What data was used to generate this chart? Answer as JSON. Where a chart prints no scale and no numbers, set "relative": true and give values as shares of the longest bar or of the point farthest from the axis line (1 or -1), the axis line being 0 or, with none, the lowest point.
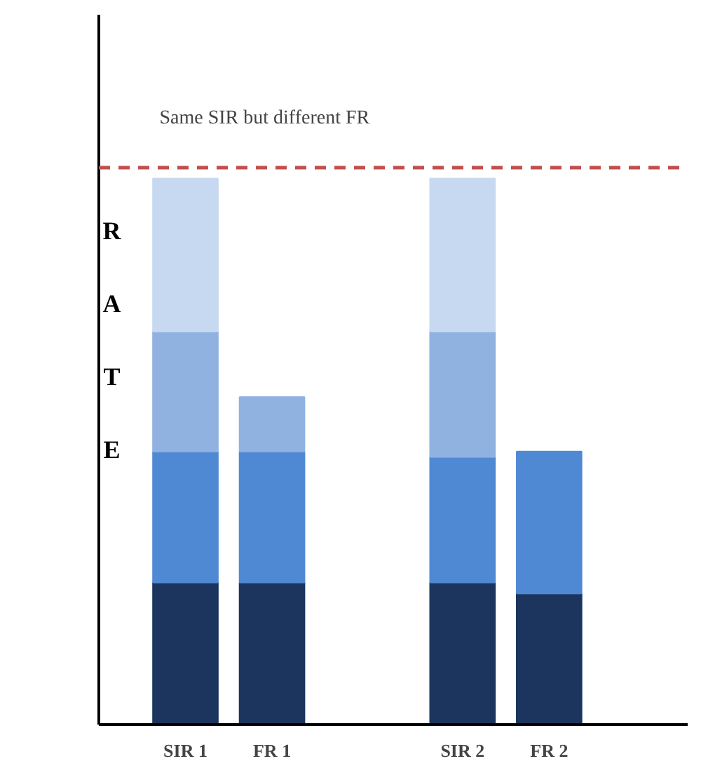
{
  "chart_data": {
    "type": "bar",
    "stacked": true,
    "relative": true,
    "ylabel": "RATE",
    "categories": [
      "SIR 1",
      "FR 1",
      "SIR 2",
      "FR 2"
    ],
    "series": [
      {
        "color": "#1c355e",
        "values": [
          0.26,
          0.26,
          0.26,
          0.24
        ]
      },
      {
        "color": "#4f89d3",
        "values": [
          0.24,
          0.24,
          0.23,
          0.26
        ]
      },
      {
        "color": "#8fb2e1",
        "values": [
          0.22,
          0.1,
          0.23,
          null
        ]
      },
      {
        "color": "#c6d9f0",
        "values": [
          0.28,
          null,
          0.28,
          null
        ]
      }
    ],
    "ref_lines": [
      {
        "axis": "y",
        "value": 1.02,
        "label": "Same SIR but different FR",
        "color": "#c0504d",
        "line_style": "dashed"
      }
    ],
    "grid": false
  }
}
